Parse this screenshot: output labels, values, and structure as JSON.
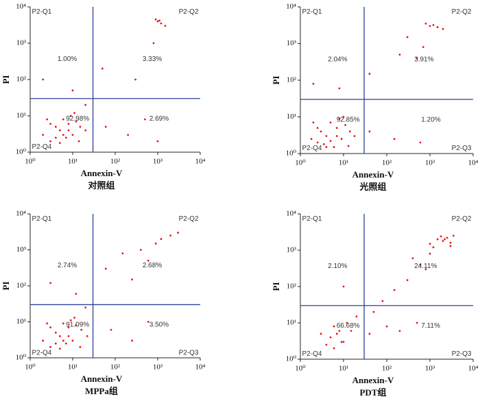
{
  "chart_data": [
    {
      "type": "scatter",
      "xlabel": "Annexin-V",
      "ylabel": "PI",
      "caption": "对照组",
      "log": true,
      "color": "#e8141c",
      "gate_color": "#2b3fa0",
      "xlim": [
        1,
        10000
      ],
      "ylim": [
        1,
        10000
      ],
      "xticks": [
        {
          "value": 1,
          "label": "10⁰"
        },
        {
          "value": 10,
          "label": "10¹"
        },
        {
          "value": 100,
          "label": "10²"
        },
        {
          "value": 1000,
          "label": "10³"
        },
        {
          "value": 10000,
          "label": "10⁴"
        }
      ],
      "yticks": [
        {
          "value": 1,
          "label": "10⁰"
        },
        {
          "value": 10,
          "label": "10¹"
        },
        {
          "value": 100,
          "label": "10²"
        },
        {
          "value": 1000,
          "label": "10³"
        },
        {
          "value": 10000,
          "label": "10⁴"
        }
      ],
      "gate": [
        30,
        30
      ],
      "quadrant_names": [
        "P2-Q1",
        "P2-Q2",
        null,
        "P2-Q4"
      ],
      "quadrant_values": [
        1.0,
        3.33,
        2.69,
        92.98
      ],
      "quadrant_value_labels": [
        "1.00%",
        "3.33%",
        "2.69%",
        "92.98%"
      ],
      "x": [
        5,
        8,
        3,
        10,
        6,
        4,
        12,
        7,
        2,
        15,
        9,
        5,
        3,
        20,
        6,
        11,
        4,
        8,
        14,
        2.5,
        60,
        200,
        500,
        1000,
        2,
        10,
        50,
        300,
        800,
        1000,
        1200,
        900,
        1500,
        1100,
        20
      ],
      "y": [
        4,
        6,
        2,
        3,
        8,
        5,
        7,
        2.5,
        3,
        5,
        10,
        1.8,
        6,
        4,
        3,
        12,
        2.5,
        4,
        2,
        8,
        5,
        3,
        8,
        2,
        100,
        50,
        200,
        100,
        1000,
        4000,
        3500,
        4500,
        3000,
        4200,
        20
      ]
    },
    {
      "type": "scatter",
      "xlabel": "Annexin-V",
      "ylabel": "PI",
      "caption": "光照组",
      "log": true,
      "color": "#e8141c",
      "gate_color": "#2b3fa0",
      "xlim": [
        1,
        10000
      ],
      "ylim": [
        1,
        10000
      ],
      "xticks": [
        {
          "value": 1,
          "label": "10⁰"
        },
        {
          "value": 10,
          "label": "10¹"
        },
        {
          "value": 100,
          "label": "10²"
        },
        {
          "value": 1000,
          "label": "10³"
        },
        {
          "value": 10000,
          "label": "10⁴"
        }
      ],
      "yticks": [
        {
          "value": 1,
          "label": "10⁰"
        },
        {
          "value": 10,
          "label": "10¹"
        },
        {
          "value": 100,
          "label": "10²"
        },
        {
          "value": 1000,
          "label": "10³"
        },
        {
          "value": 10000,
          "label": "10⁴"
        }
      ],
      "gate": [
        30,
        30
      ],
      "quadrant_names": [
        "P2-Q1",
        "P2-Q2",
        "P2-Q3",
        "P2-Q4"
      ],
      "quadrant_values": [
        2.04,
        3.91,
        1.2,
        92.85
      ],
      "quadrant_value_labels": [
        "2.04%",
        "3.91%",
        "1.20%",
        "92.85%"
      ],
      "x": [
        4,
        7,
        2.5,
        9,
        5,
        3,
        11,
        6,
        1.8,
        14,
        8,
        4,
        2.5,
        18,
        5,
        10,
        3.5,
        7,
        13,
        2,
        40,
        150,
        600,
        2,
        8,
        40,
        200,
        700,
        300,
        1000,
        1500,
        800,
        2000,
        1200,
        500
      ],
      "y": [
        3,
        5,
        2,
        2.5,
        7,
        4,
        6,
        1.5,
        2.5,
        4,
        9,
        1.5,
        5,
        3,
        2.2,
        10,
        1.8,
        3,
        1.6,
        7,
        4,
        2.5,
        2,
        80,
        60,
        150,
        500,
        800,
        1500,
        3000,
        2800,
        3500,
        2500,
        3200,
        400
      ]
    },
    {
      "type": "scatter",
      "xlabel": "Annexin-V",
      "ylabel": "PI",
      "caption": "MPPa组",
      "log": true,
      "color": "#e8141c",
      "gate_color": "#2b3fa0",
      "xlim": [
        1,
        10000
      ],
      "ylim": [
        1,
        10000
      ],
      "xticks": [
        {
          "value": 1,
          "label": "10⁰"
        },
        {
          "value": 10,
          "label": "10¹"
        },
        {
          "value": 100,
          "label": "10²"
        },
        {
          "value": 1000,
          "label": "10³"
        },
        {
          "value": 10000,
          "label": "10⁴"
        }
      ],
      "yticks": [
        {
          "value": 1,
          "label": "10⁰"
        },
        {
          "value": 10,
          "label": "10¹"
        },
        {
          "value": 100,
          "label": "10²"
        },
        {
          "value": 1000,
          "label": "10³"
        },
        {
          "value": 10000,
          "label": "10⁴"
        }
      ],
      "gate": [
        30,
        30
      ],
      "quadrant_names": [
        "P2-Q1",
        "P2-Q2",
        "P2-Q3",
        "P2-Q4"
      ],
      "quadrant_values": [
        2.74,
        2.68,
        3.5,
        91.09
      ],
      "quadrant_value_labels": [
        "2.74%",
        "2.68%",
        "3.50%",
        "91.09%"
      ],
      "x": [
        5,
        8,
        3,
        10,
        6,
        4,
        12,
        7,
        2,
        16,
        9,
        5,
        3,
        22,
        6,
        11,
        4,
        8,
        15,
        2.5,
        80,
        250,
        600,
        3,
        12,
        60,
        150,
        400,
        900,
        2000,
        3000,
        1200,
        250,
        600,
        20
      ],
      "y": [
        4,
        7,
        2,
        3,
        9,
        5,
        8,
        2.5,
        3,
        6,
        11,
        1.8,
        7,
        4,
        3,
        13,
        2.5,
        4,
        2,
        9,
        6,
        3,
        10,
        120,
        60,
        300,
        800,
        1000,
        1500,
        2500,
        3000,
        2000,
        150,
        500,
        25
      ]
    },
    {
      "type": "scatter",
      "xlabel": "Annexin-V",
      "ylabel": "PI",
      "caption": "PDT组",
      "log": true,
      "color": "#e8141c",
      "gate_color": "#2b3fa0",
      "xlim": [
        1,
        10000
      ],
      "ylim": [
        1,
        10000
      ],
      "xticks": [
        {
          "value": 1,
          "label": "10⁰"
        },
        {
          "value": 10,
          "label": "10¹"
        },
        {
          "value": 100,
          "label": "10²"
        },
        {
          "value": 1000,
          "label": "10³"
        },
        {
          "value": 10000,
          "label": "10⁴"
        }
      ],
      "yticks": [
        {
          "value": 1,
          "label": "10⁰"
        },
        {
          "value": 10,
          "label": "10¹"
        },
        {
          "value": 100,
          "label": "10²"
        },
        {
          "value": 1000,
          "label": "10³"
        },
        {
          "value": 10000,
          "label": "10⁴"
        }
      ],
      "gate": [
        30,
        30
      ],
      "quadrant_names": [
        "P2-Q1",
        "P2-Q2",
        "P2-Q3",
        "P2-Q4"
      ],
      "quadrant_values": [
        2.1,
        24.11,
        7.11,
        66.68
      ],
      "quadrant_value_labels": [
        "2.10%",
        "24.11%",
        "7.11%",
        "66.68%"
      ],
      "x": [
        5,
        8,
        4,
        10,
        6,
        7,
        12,
        9,
        3,
        15,
        20,
        6,
        50,
        80,
        150,
        300,
        600,
        40,
        100,
        200,
        500,
        10,
        1000,
        1500,
        2000,
        2500,
        3000,
        3500,
        1200,
        1800,
        2200,
        3000,
        800,
        1000,
        400
      ],
      "y": [
        4,
        6,
        2.5,
        3,
        8,
        5,
        10,
        3,
        5,
        6,
        15,
        2,
        20,
        40,
        80,
        150,
        400,
        5,
        8,
        6,
        10,
        100,
        1500,
        2000,
        1800,
        2200,
        1600,
        2500,
        1200,
        2400,
        2000,
        1300,
        300,
        800,
        600
      ]
    }
  ]
}
